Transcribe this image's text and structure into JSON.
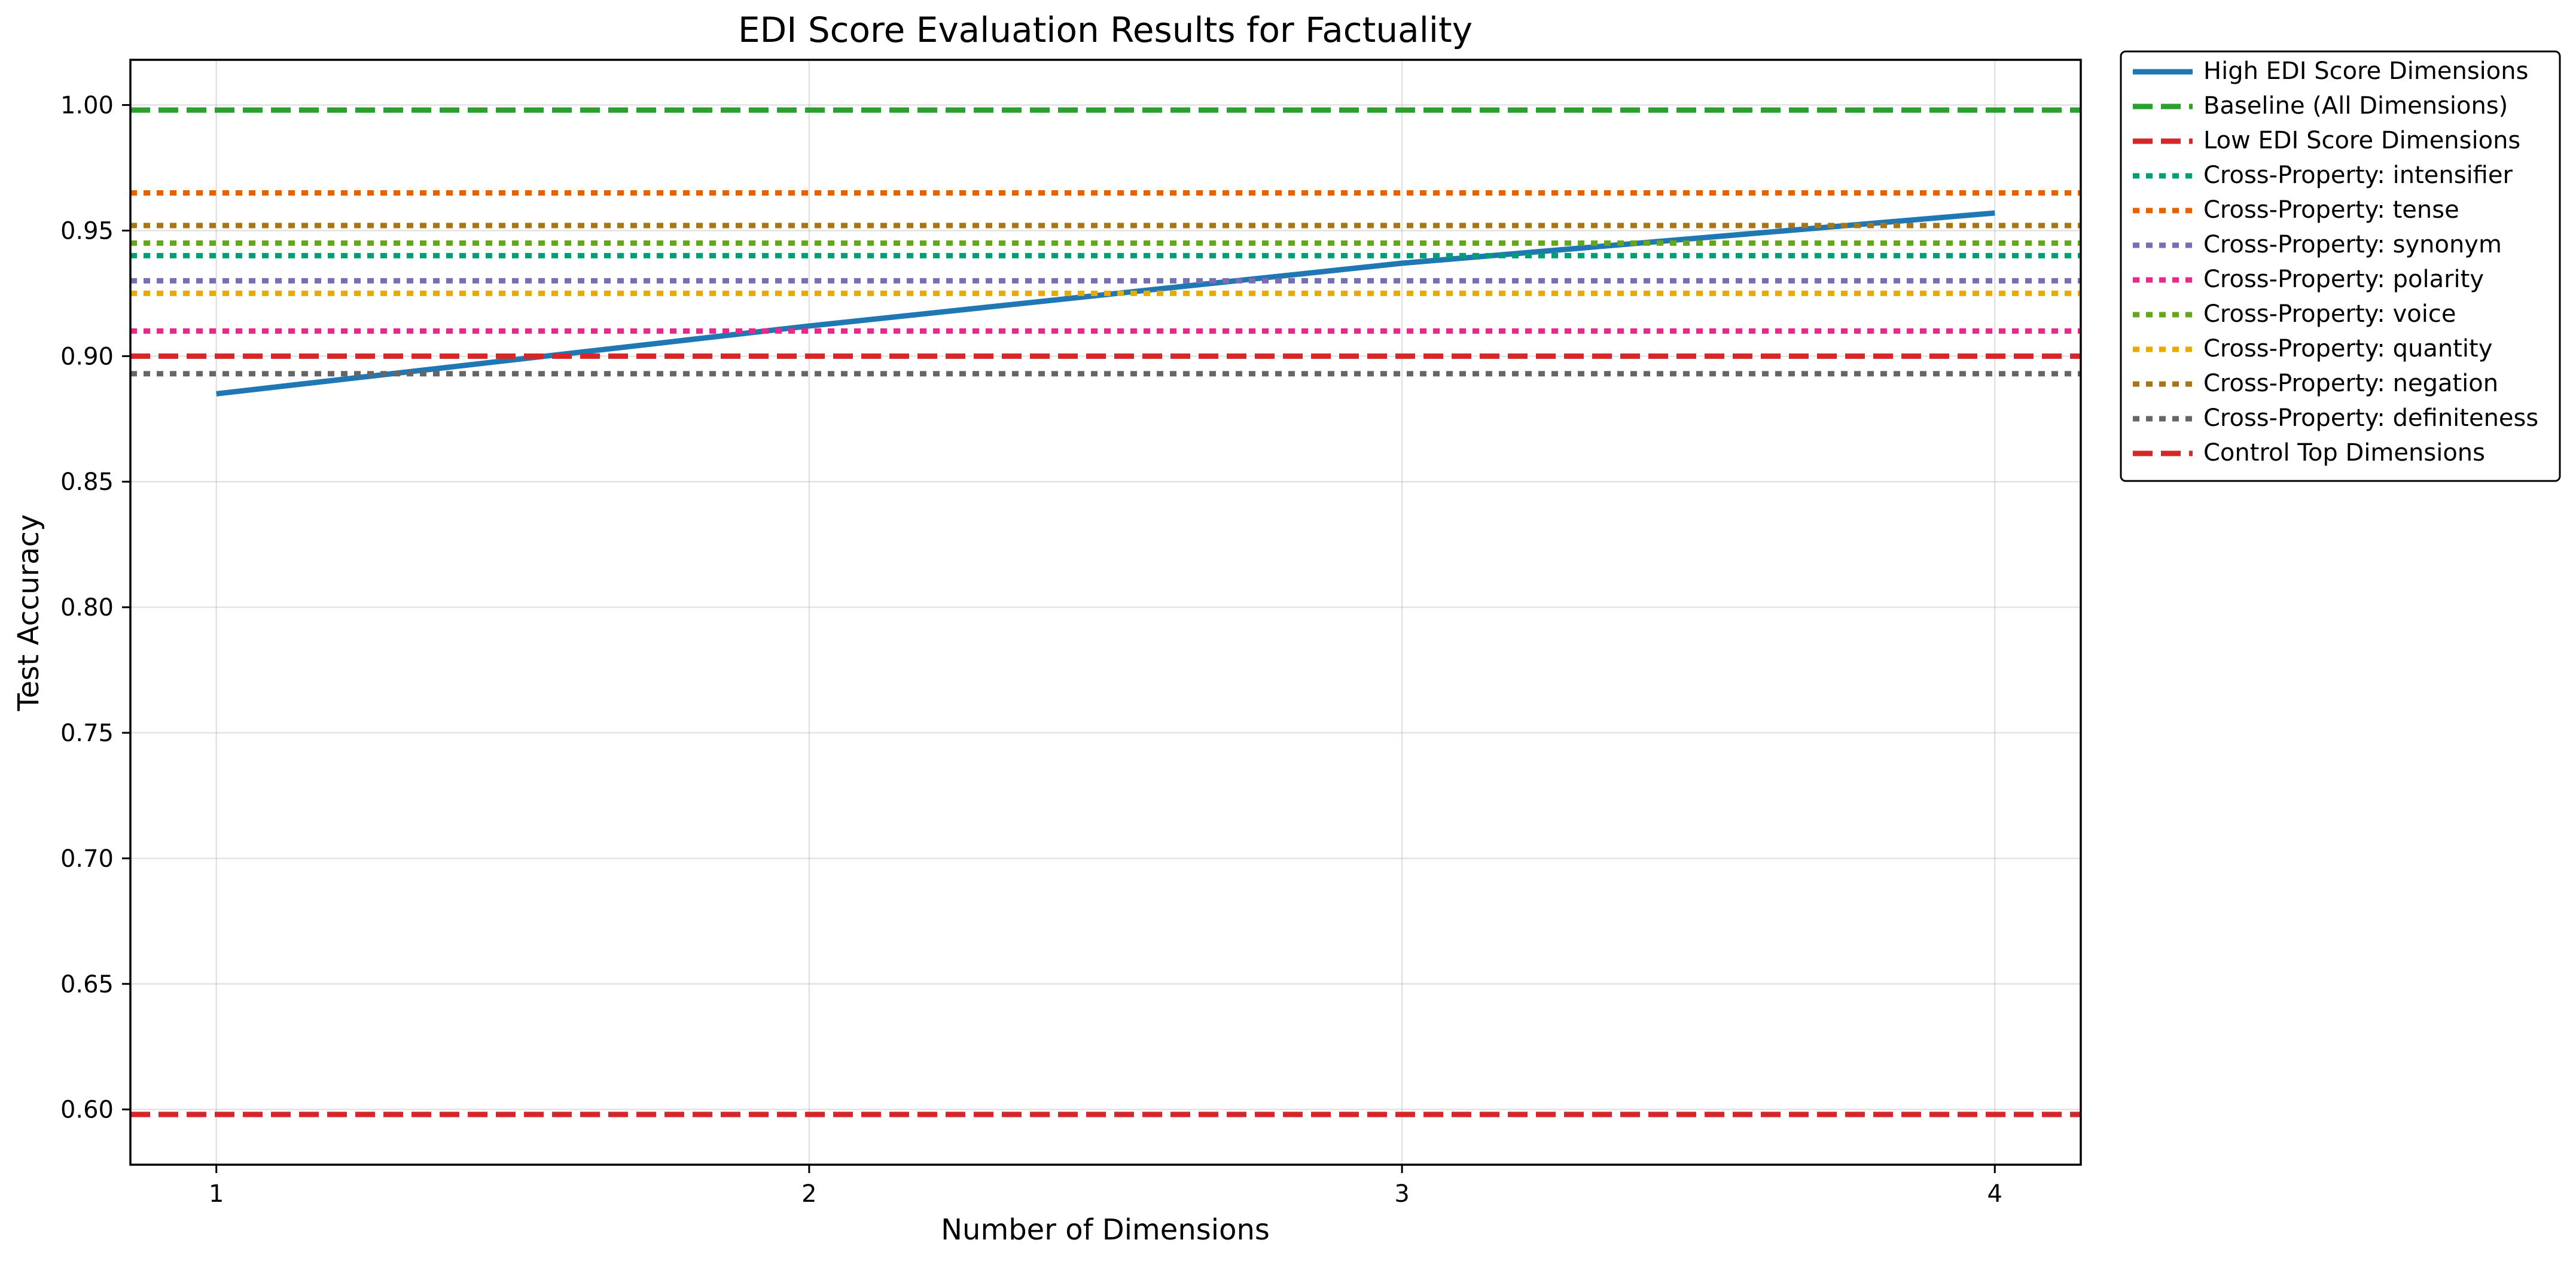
{
  "chart_data": {
    "type": "line",
    "title": "EDI Score Evaluation Results for Factuality",
    "xlabel": "Number of Dimensions",
    "ylabel": "Test Accuracy",
    "x": [
      1,
      2,
      3,
      4
    ],
    "xlim": [
      0.855,
      4.145
    ],
    "ylim": [
      0.578,
      1.018
    ],
    "xticks": [
      1,
      2,
      3,
      4
    ],
    "yticks": [
      0.6,
      0.65,
      0.7,
      0.75,
      0.8,
      0.85,
      0.9,
      0.95,
      1.0
    ],
    "grid": true,
    "legend_position": "outside right, top",
    "series": [
      {
        "name": "High EDI Score Dimensions",
        "kind": "line",
        "style": "solid",
        "color": "#1f77b4",
        "values": [
          0.885,
          0.912,
          0.937,
          0.957
        ]
      },
      {
        "name": "Baseline (All Dimensions)",
        "kind": "hline",
        "style": "dashed",
        "color": "#2ca02c",
        "value": 0.998
      },
      {
        "name": "Low EDI Score Dimensions",
        "kind": "hline",
        "style": "dashed",
        "color": "#d62728",
        "value": 0.598
      },
      {
        "name": "Cross-Property: intensifier",
        "kind": "hline",
        "style": "dotted",
        "color": "#009e73",
        "value": 0.94
      },
      {
        "name": "Cross-Property: tense",
        "kind": "hline",
        "style": "dotted",
        "color": "#e66100",
        "value": 0.965
      },
      {
        "name": "Cross-Property: synonym",
        "kind": "hline",
        "style": "dotted",
        "color": "#7570b3",
        "value": 0.93
      },
      {
        "name": "Cross-Property: polarity",
        "kind": "hline",
        "style": "dotted",
        "color": "#e7298a",
        "value": 0.91
      },
      {
        "name": "Cross-Property: voice",
        "kind": "hline",
        "style": "dotted",
        "color": "#66a61e",
        "value": 0.945
      },
      {
        "name": "Cross-Property: quantity",
        "kind": "hline",
        "style": "dotted",
        "color": "#e6ab02",
        "value": 0.925
      },
      {
        "name": "Cross-Property: negation",
        "kind": "hline",
        "style": "dotted",
        "color": "#a6761d",
        "value": 0.952
      },
      {
        "name": "Cross-Property: definiteness",
        "kind": "hline",
        "style": "dotted",
        "color": "#666666",
        "value": 0.893
      },
      {
        "name": "Control Top Dimensions",
        "kind": "hline",
        "style": "dashed",
        "color": "#d62728",
        "value": 0.9
      }
    ]
  }
}
